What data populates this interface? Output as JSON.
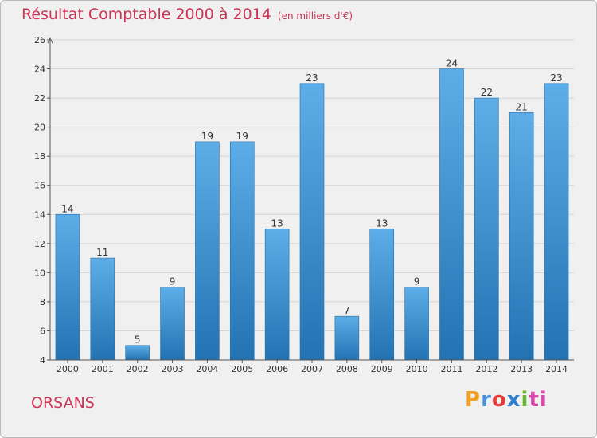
{
  "chart_data": {
    "type": "bar",
    "title": "Résultat Comptable 2000 à 2014",
    "subtitle": "(en milliers d'€)",
    "categories": [
      "2000",
      "2001",
      "2002",
      "2003",
      "2004",
      "2005",
      "2006",
      "2007",
      "2008",
      "2009",
      "2010",
      "2011",
      "2012",
      "2013",
      "2014"
    ],
    "values": [
      14,
      11,
      5,
      9,
      19,
      19,
      13,
      23,
      7,
      13,
      9,
      24,
      22,
      21,
      23
    ],
    "ylim": [
      4,
      26
    ],
    "yticks": [
      4,
      6,
      8,
      10,
      12,
      14,
      16,
      18,
      20,
      22,
      24,
      26
    ],
    "xlabel": "",
    "ylabel": "",
    "grid": true,
    "legend": "none"
  },
  "footer": {
    "place": "ORSANS",
    "brand": "Proxiti",
    "brand_letters": [
      "P",
      "r",
      "o",
      "x",
      "i",
      "ti"
    ]
  },
  "colors": {
    "bar_top": "#5dade8",
    "bar_bottom": "#2373b3",
    "title": "#cc3355"
  }
}
